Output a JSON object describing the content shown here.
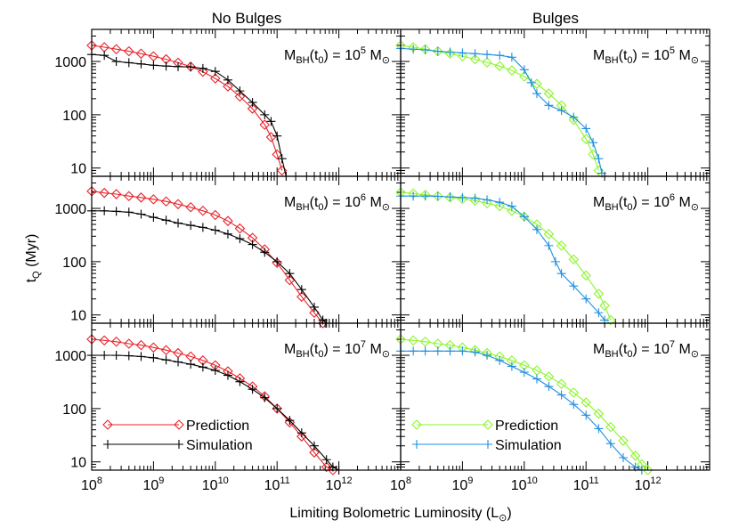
{
  "figure": {
    "col_titles": [
      "No Bulges",
      "Bulges"
    ],
    "xlabel": "Limiting Bolometric Luminosity (L",
    "xlabel_sun": "⊙",
    "xlabel_close": ")",
    "ylabel_main": "t",
    "ylabel_sub": "Q",
    "ylabel_rest": " (Myr)",
    "xticks": [
      {
        "base": "10",
        "exp": "8",
        "v": 8
      },
      {
        "base": "10",
        "exp": "9",
        "v": 9
      },
      {
        "base": "10",
        "exp": "10",
        "v": 10
      },
      {
        "base": "10",
        "exp": "11",
        "v": 11
      },
      {
        "base": "10",
        "exp": "12",
        "v": 12
      }
    ],
    "yticks": [
      {
        "label": "10",
        "v": 10
      },
      {
        "label": "100",
        "v": 100
      },
      {
        "label": "1000",
        "v": 1000
      }
    ],
    "row_annotations": [
      {
        "prefix": "M",
        "sub": "BH",
        "mid": "(t",
        "sub0": "0",
        "eq": ") = 10",
        "exp": "5",
        "unit": " M",
        "sun": "⊙"
      },
      {
        "prefix": "M",
        "sub": "BH",
        "mid": "(t",
        "sub0": "0",
        "eq": ") = 10",
        "exp": "6",
        "unit": " M",
        "sun": "⊙"
      },
      {
        "prefix": "M",
        "sub": "BH",
        "mid": "(t",
        "sub0": "0",
        "eq": ") = 10",
        "exp": "7",
        "unit": " M",
        "sun": "⊙"
      }
    ],
    "legend": {
      "left": [
        {
          "label": "Prediction",
          "color": "#e8232a",
          "marker": "diamond"
        },
        {
          "label": "Simulation",
          "color": "#000000",
          "marker": "plus"
        }
      ],
      "right": [
        {
          "label": "Prediction",
          "color": "#8cf52b",
          "marker": "diamond"
        },
        {
          "label": "Simulation",
          "color": "#1f8fe0",
          "marker": "plus"
        }
      ]
    }
  },
  "chart_data": [
    {
      "type": "line",
      "panel": "row1-left",
      "xscale": "log",
      "yscale": "log",
      "xlim": [
        100000000.0,
        10000000000000.0
      ],
      "ylim": [
        7,
        4000
      ],
      "series": [
        {
          "name": "Prediction",
          "color": "#e8232a",
          "marker": "diamond",
          "x": [
            100000000.0,
            160000000.0,
            250000000.0,
            400000000.0,
            630000000.0,
            1000000000.0,
            1600000000.0,
            2500000000.0,
            4000000000.0,
            6300000000.0,
            10000000000.0,
            16000000000.0,
            25000000000.0,
            40000000000.0,
            63000000000.0,
            80000000000.0,
            100000000000.0,
            120000000000.0
          ],
          "y": [
            2000,
            1850,
            1700,
            1550,
            1400,
            1250,
            1100,
            950,
            800,
            640,
            480,
            340,
            220,
            130,
            65,
            38,
            18,
            9
          ]
        },
        {
          "name": "Simulation",
          "color": "#000000",
          "marker": "plus",
          "x": [
            100000000.0,
            160000000.0,
            250000000.0,
            400000000.0,
            630000000.0,
            1000000000.0,
            1600000000.0,
            2500000000.0,
            4000000000.0,
            6300000000.0,
            10000000000.0,
            16000000000.0,
            25000000000.0,
            40000000000.0,
            63000000000.0,
            80000000000.0,
            100000000000.0,
            120000000000.0,
            140000000000.0
          ],
          "y": [
            1350,
            1300,
            1000,
            950,
            900,
            850,
            820,
            800,
            790,
            740,
            650,
            450,
            280,
            170,
            100,
            75,
            40,
            15,
            7
          ]
        }
      ]
    },
    {
      "type": "line",
      "panel": "row1-right",
      "xscale": "log",
      "yscale": "log",
      "xlim": [
        100000000.0,
        10000000000000.0
      ],
      "ylim": [
        7,
        4000
      ],
      "series": [
        {
          "name": "Prediction",
          "color": "#8cf52b",
          "marker": "diamond",
          "x": [
            100000000.0,
            160000000.0,
            250000000.0,
            400000000.0,
            630000000.0,
            1000000000.0,
            1600000000.0,
            2500000000.0,
            4000000000.0,
            6300000000.0,
            10000000000.0,
            16000000000.0,
            25000000000.0,
            40000000000.0,
            63000000000.0,
            100000000000.0,
            130000000000.0,
            160000000000.0
          ],
          "y": [
            2000,
            1850,
            1700,
            1550,
            1400,
            1250,
            1100,
            960,
            820,
            680,
            520,
            380,
            250,
            150,
            80,
            35,
            18,
            9
          ]
        },
        {
          "name": "Simulation",
          "color": "#1f8fe0",
          "marker": "plus",
          "x": [
            100000000.0,
            160000000.0,
            250000000.0,
            400000000.0,
            630000000.0,
            1000000000.0,
            1600000000.0,
            2500000000.0,
            4000000000.0,
            6300000000.0,
            10000000000.0,
            13000000000.0,
            16000000000.0,
            25000000000.0,
            40000000000.0,
            63000000000.0,
            100000000000.0,
            130000000000.0,
            160000000000.0,
            180000000000.0
          ],
          "y": [
            1750,
            1700,
            1650,
            1550,
            1500,
            1450,
            1400,
            1350,
            1300,
            1200,
            700,
            400,
            250,
            150,
            120,
            90,
            55,
            30,
            15,
            8
          ]
        }
      ]
    },
    {
      "type": "line",
      "panel": "row2-left",
      "xscale": "log",
      "yscale": "log",
      "xlim": [
        100000000.0,
        10000000000000.0
      ],
      "ylim": [
        7,
        4000
      ],
      "series": [
        {
          "name": "Prediction",
          "color": "#e8232a",
          "marker": "diamond",
          "x": [
            100000000.0,
            160000000.0,
            250000000.0,
            400000000.0,
            630000000.0,
            1000000000.0,
            1600000000.0,
            2500000000.0,
            4000000000.0,
            6300000000.0,
            10000000000.0,
            16000000000.0,
            25000000000.0,
            40000000000.0,
            63000000000.0,
            100000000000.0,
            160000000000.0,
            250000000000.0,
            400000000000.0,
            550000000000.0
          ],
          "y": [
            2100,
            1950,
            1850,
            1700,
            1600,
            1480,
            1350,
            1200,
            1050,
            900,
            750,
            580,
            420,
            280,
            170,
            95,
            45,
            22,
            11,
            7
          ]
        },
        {
          "name": "Simulation",
          "color": "#000000",
          "marker": "plus",
          "x": [
            100000000.0,
            160000000.0,
            250000000.0,
            400000000.0,
            630000000.0,
            1000000000.0,
            1600000000.0,
            2500000000.0,
            4000000000.0,
            6300000000.0,
            10000000000.0,
            16000000000.0,
            25000000000.0,
            40000000000.0,
            63000000000.0,
            100000000000.0,
            160000000000.0,
            250000000000.0,
            400000000000.0,
            550000000000.0,
            630000000000.0,
            800000000000.0
          ],
          "y": [
            900,
            900,
            880,
            850,
            780,
            680,
            600,
            530,
            480,
            440,
            390,
            330,
            270,
            210,
            150,
            100,
            60,
            30,
            14,
            8,
            7,
            7
          ]
        }
      ]
    },
    {
      "type": "line",
      "panel": "row2-right",
      "xscale": "log",
      "yscale": "log",
      "xlim": [
        100000000.0,
        10000000000000.0
      ],
      "ylim": [
        7,
        4000
      ],
      "series": [
        {
          "name": "Prediction",
          "color": "#8cf52b",
          "marker": "diamond",
          "x": [
            100000000.0,
            160000000.0,
            250000000.0,
            400000000.0,
            630000000.0,
            1000000000.0,
            1600000000.0,
            2500000000.0,
            4000000000.0,
            6300000000.0,
            10000000000.0,
            16000000000.0,
            25000000000.0,
            40000000000.0,
            63000000000.0,
            100000000000.0,
            160000000000.0,
            200000000000.0,
            250000000000.0
          ],
          "y": [
            2000,
            1900,
            1800,
            1700,
            1600,
            1500,
            1400,
            1250,
            1100,
            900,
            700,
            500,
            330,
            200,
            110,
            55,
            25,
            15,
            8
          ]
        },
        {
          "name": "Simulation",
          "color": "#1f8fe0",
          "marker": "plus",
          "x": [
            100000000.0,
            160000000.0,
            250000000.0,
            400000000.0,
            630000000.0,
            1000000000.0,
            1600000000.0,
            2500000000.0,
            4000000000.0,
            6300000000.0,
            10000000000.0,
            16000000000.0,
            25000000000.0,
            32000000000.0,
            40000000000.0,
            63000000000.0,
            100000000000.0,
            160000000000.0,
            200000000000.0
          ],
          "y": [
            1700,
            1700,
            1700,
            1680,
            1650,
            1600,
            1550,
            1450,
            1300,
            1100,
            700,
            400,
            200,
            100,
            60,
            35,
            20,
            11,
            8
          ]
        }
      ]
    },
    {
      "type": "line",
      "panel": "row3-left",
      "xscale": "log",
      "yscale": "log",
      "xlim": [
        100000000.0,
        10000000000000.0
      ],
      "ylim": [
        7,
        4000
      ],
      "series": [
        {
          "name": "Prediction",
          "color": "#e8232a",
          "marker": "diamond",
          "x": [
            100000000.0,
            160000000.0,
            250000000.0,
            400000000.0,
            630000000.0,
            1000000000.0,
            1600000000.0,
            2500000000.0,
            4000000000.0,
            6300000000.0,
            10000000000.0,
            16000000000.0,
            25000000000.0,
            40000000000.0,
            63000000000.0,
            100000000000.0,
            160000000000.0,
            250000000000.0,
            400000000000.0,
            630000000000.0,
            800000000000.0
          ],
          "y": [
            2000,
            1900,
            1800,
            1650,
            1550,
            1400,
            1250,
            1100,
            950,
            800,
            650,
            500,
            370,
            260,
            170,
            100,
            55,
            30,
            15,
            8,
            7
          ]
        },
        {
          "name": "Simulation",
          "color": "#000000",
          "marker": "plus",
          "x": [
            100000000.0,
            160000000.0,
            250000000.0,
            400000000.0,
            630000000.0,
            1000000000.0,
            1600000000.0,
            2500000000.0,
            4000000000.0,
            6300000000.0,
            10000000000.0,
            16000000000.0,
            25000000000.0,
            40000000000.0,
            63000000000.0,
            100000000000.0,
            160000000000.0,
            250000000000.0,
            400000000000.0,
            630000000000.0,
            800000000000.0,
            1000000000000.0
          ],
          "y": [
            1000,
            1000,
            1000,
            980,
            950,
            900,
            820,
            750,
            680,
            600,
            520,
            420,
            320,
            230,
            160,
            100,
            60,
            35,
            20,
            11,
            8,
            7
          ]
        }
      ]
    },
    {
      "type": "line",
      "panel": "row3-right",
      "xscale": "log",
      "yscale": "log",
      "xlim": [
        100000000.0,
        10000000000000.0
      ],
      "ylim": [
        7,
        4000
      ],
      "series": [
        {
          "name": "Prediction",
          "color": "#8cf52b",
          "marker": "diamond",
          "x": [
            100000000.0,
            160000000.0,
            250000000.0,
            400000000.0,
            630000000.0,
            1000000000.0,
            1600000000.0,
            2500000000.0,
            4000000000.0,
            6300000000.0,
            10000000000.0,
            16000000000.0,
            25000000000.0,
            40000000000.0,
            63000000000.0,
            100000000000.0,
            160000000000.0,
            250000000000.0,
            400000000000.0,
            630000000000.0,
            800000000000.0,
            1000000000000.0
          ],
          "y": [
            2000,
            1900,
            1800,
            1650,
            1550,
            1400,
            1250,
            1100,
            950,
            800,
            650,
            520,
            400,
            290,
            200,
            130,
            80,
            45,
            25,
            13,
            9,
            7
          ]
        },
        {
          "name": "Simulation",
          "color": "#1f8fe0",
          "marker": "plus",
          "x": [
            100000000.0,
            160000000.0,
            250000000.0,
            400000000.0,
            630000000.0,
            1000000000.0,
            1600000000.0,
            2500000000.0,
            4000000000.0,
            6300000000.0,
            10000000000.0,
            16000000000.0,
            25000000000.0,
            40000000000.0,
            63000000000.0,
            100000000000.0,
            160000000000.0,
            250000000000.0,
            400000000000.0,
            630000000000.0,
            800000000000.0
          ],
          "y": [
            1200,
            1200,
            1200,
            1200,
            1200,
            1200,
            1150,
            1000,
            800,
            620,
            480,
            360,
            260,
            180,
            120,
            75,
            42,
            22,
            12,
            8,
            7
          ]
        }
      ]
    }
  ]
}
